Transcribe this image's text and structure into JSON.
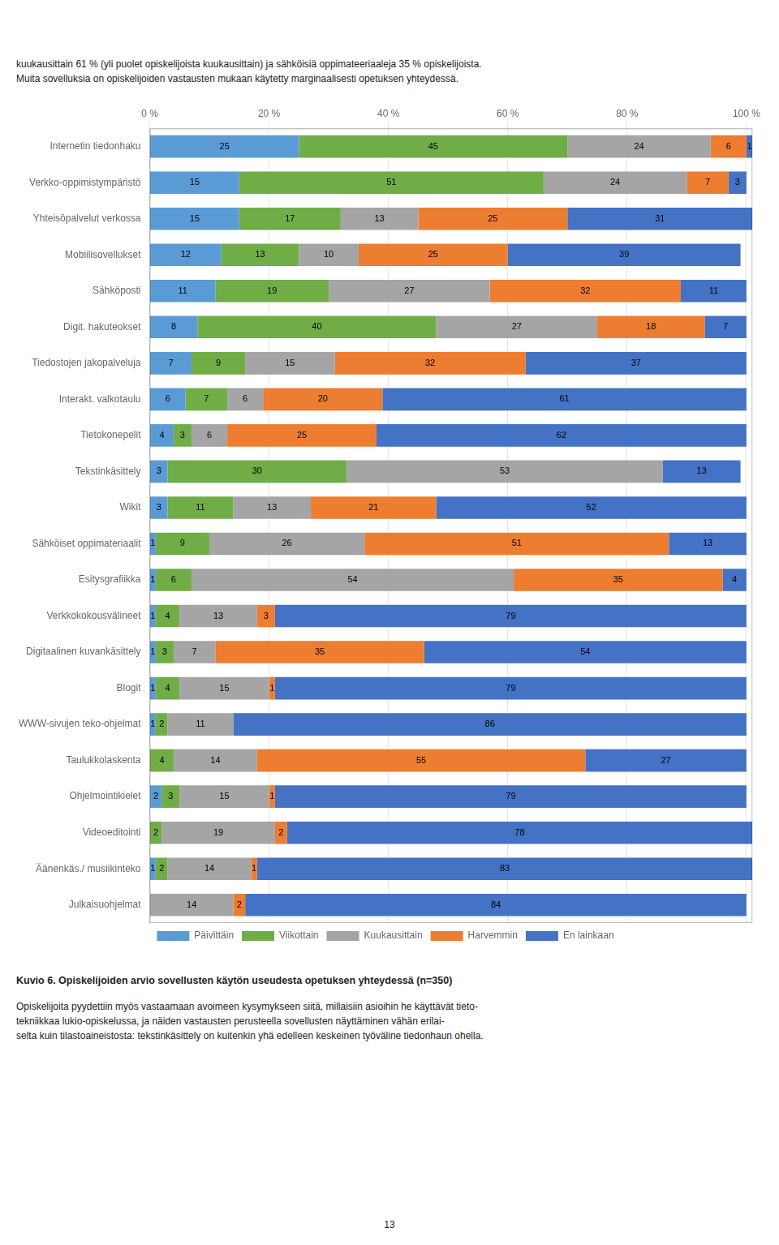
{
  "chart_data": {
    "type": "bar",
    "orientation": "horizontal",
    "stacked": true,
    "data_labels": true,
    "grid": true,
    "legend": "bottom",
    "title": "Kuvio 6. Opiskelijoiden arvio sovellusten käytön useudesta opetuksen yhteydessä (n=350)",
    "annotations": [
      "kuukausittain 61 % (yli puolet opiskelijoista kuukausittain) ja sähköisiä oppimateeriaaleja 35 % opiskelijoista.",
      "Muita sovelluksia on opiskelijoiden vastausten mukaan käytetty marginaalisesti opetuksen yhteydessä.",
      "Opiskelijoita pyydettiin myös vastaamaan avoimeen kysymykseen siitä, millaisiin asioihin he käyttävät tieto-",
      "tekniikkaa lukio-opiskelussa, ja näiden vastausten perusteella sovellusten näyttäminen vähän erilai-",
      "selta kuin tilastoaineistosta: tekstinkäsittely on kuitenkin yhä edelleen keskeinen työväline tiedonhaun ohella.",
      "13"
    ],
    "categories": [
      "Internetin tiedonhaku",
      "Verkko-oppimistympäristö",
      "Yhteisöpalvelut verkossa",
      "Mobiilisovellukset",
      "Sähköposti",
      "Digit. hakuteokset",
      "Tiedostojen jakopalveluja",
      "Interakt. valkotaulu",
      "Tietokonepelit",
      "Tekstinkäsittely",
      "Wikit",
      "Sähköiset oppimateriaalit",
      "Esitysgrafiikka",
      "Verkkokokousvälineet",
      "Digitaalinen kuvankäsittely",
      "Blogit",
      "WWW-sivujen teko-ohjelmat",
      "Taulukkolaskenta",
      "Ohjelmointikielet",
      "Videoeditointi",
      "Äänenkäs./ musiikinteko",
      "Julkaisuohjelmat"
    ],
    "series": [
      {
        "name": "Päivittäin",
        "color": "#5b9bd5",
        "values": [
          25,
          15,
          15,
          12,
          11,
          8,
          7,
          6,
          4,
          3,
          3,
          1,
          1,
          1,
          1,
          1,
          1,
          0,
          2,
          0,
          1,
          0
        ]
      },
      {
        "name": "Viikottain",
        "color": "#70ad47",
        "values": [
          45,
          51,
          17,
          13,
          19,
          40,
          9,
          7,
          3,
          30,
          11,
          9,
          6,
          4,
          3,
          4,
          2,
          4,
          3,
          2,
          2,
          0
        ]
      },
      {
        "name": "Kuukausittain",
        "color": "#a5a5a5",
        "values": [
          24,
          24,
          13,
          10,
          27,
          27,
          15,
          6,
          6,
          53,
          13,
          26,
          54,
          13,
          7,
          15,
          11,
          14,
          15,
          19,
          14,
          14
        ]
      },
      {
        "name": "Harvemmin",
        "color": "#ed7d31",
        "values": [
          6,
          7,
          25,
          25,
          32,
          18,
          32,
          20,
          25,
          0,
          21,
          51,
          35,
          3,
          35,
          1,
          0,
          55,
          1,
          2,
          1,
          2
        ]
      },
      {
        "name": "En lainkaan",
        "color": "#4472c4",
        "values": [
          1,
          3,
          31,
          39,
          11,
          7,
          37,
          61,
          62,
          13,
          52,
          13,
          4,
          79,
          54,
          79,
          86,
          27,
          79,
          78,
          83,
          84
        ]
      }
    ],
    "xlim": [
      0,
      101
    ],
    "xticks": [
      {
        "value": 0,
        "label": "0 %"
      },
      {
        "value": 20,
        "label": "20 %"
      },
      {
        "value": 40,
        "label": "40 %"
      },
      {
        "value": 60,
        "label": "60 %"
      },
      {
        "value": 80,
        "label": "80 %"
      },
      {
        "value": 100,
        "label": "100 %"
      }
    ]
  }
}
